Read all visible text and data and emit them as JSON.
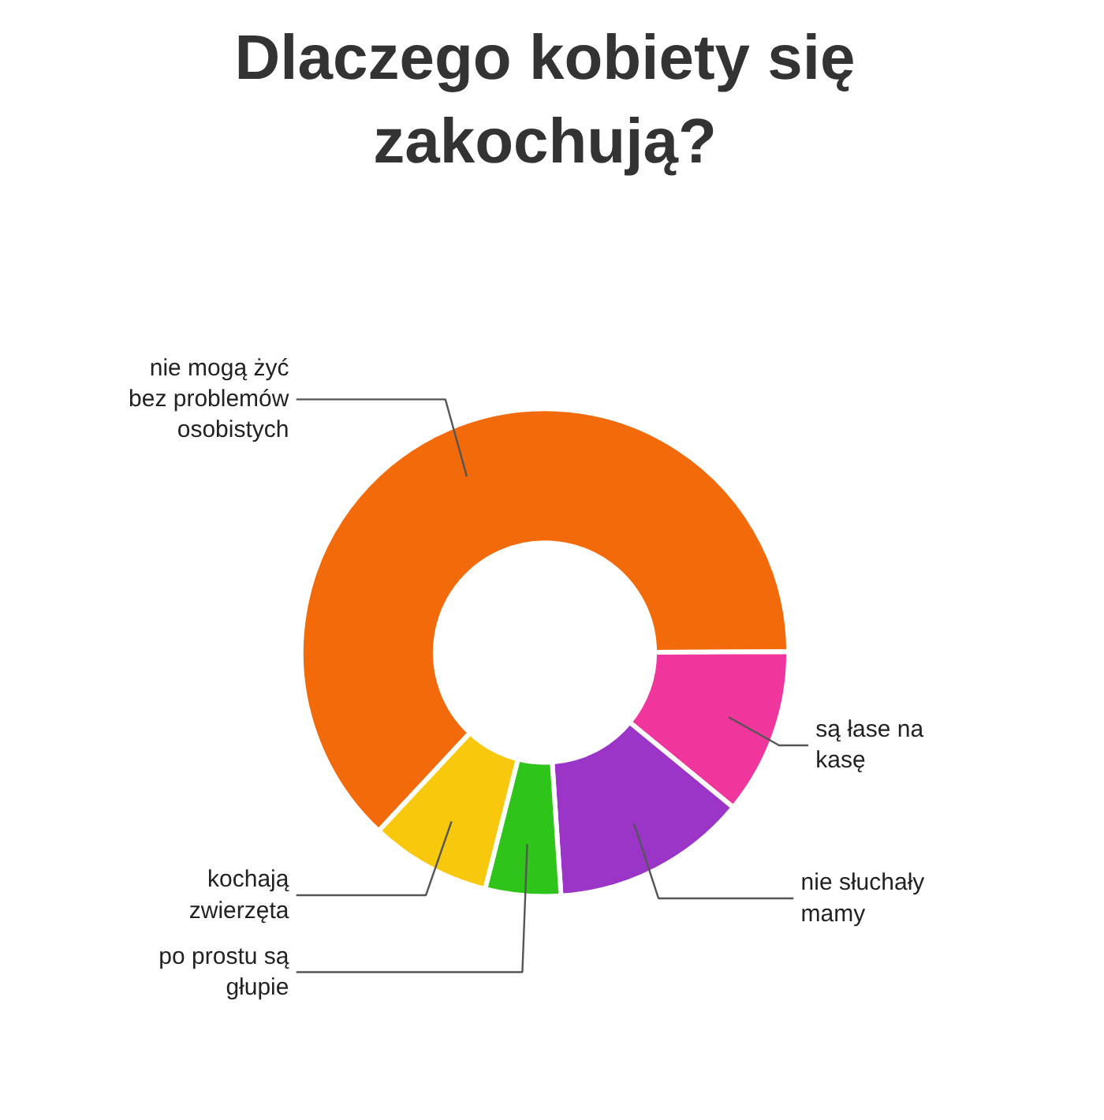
{
  "chart_data": {
    "type": "donut",
    "title": "Dlaczego kobiety się zakochują?",
    "categories": [
      "nie mogą żyć bez problemów osobistych",
      "są łase na kasę",
      "nie słuchały mamy",
      "po prostu są głupie",
      "kochają zwierzęta"
    ],
    "values": [
      63,
      11,
      13,
      5,
      8
    ],
    "colors": [
      "#f26a0a",
      "#f0369c",
      "#9a35c8",
      "#2ec41a",
      "#f7c80b"
    ]
  }
}
